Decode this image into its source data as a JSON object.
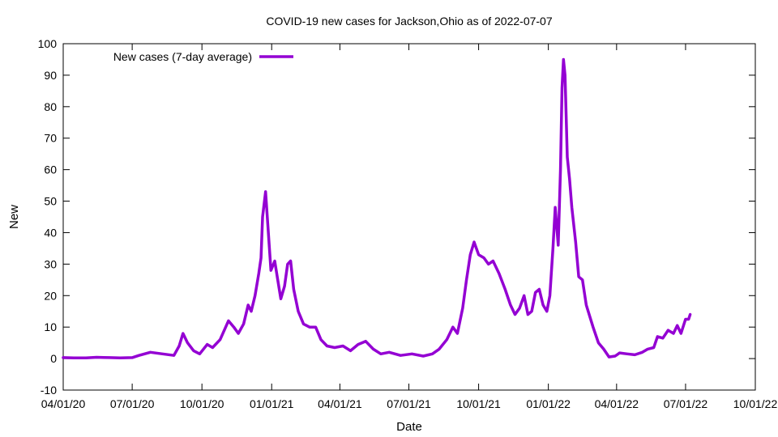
{
  "chart_data": {
    "type": "line",
    "title": "COVID-19 new cases for Jackson,Ohio as of 2022-07-07",
    "xlabel": "Date",
    "ylabel": "New",
    "ylim": [
      -10,
      100
    ],
    "xlim": [
      "2020-04-01",
      "2022-10-01"
    ],
    "x_ticks": [
      "04/01/20",
      "07/01/20",
      "10/01/20",
      "01/01/21",
      "04/01/21",
      "07/01/21",
      "10/01/21",
      "01/01/22",
      "04/01/22",
      "07/01/22",
      "10/01/22"
    ],
    "y_ticks": [
      -10,
      0,
      10,
      20,
      30,
      40,
      50,
      60,
      70,
      80,
      90,
      100
    ],
    "grid": false,
    "legend_position": "top-left",
    "series": [
      {
        "name": "New cases (7-day average)",
        "color": "#9400d3",
        "points": [
          [
            "2020-04-01",
            0.3
          ],
          [
            "2020-04-15",
            0.2
          ],
          [
            "2020-05-01",
            0.2
          ],
          [
            "2020-05-15",
            0.4
          ],
          [
            "2020-06-01",
            0.3
          ],
          [
            "2020-06-15",
            0.2
          ],
          [
            "2020-07-01",
            0.3
          ],
          [
            "2020-07-10",
            1.0
          ],
          [
            "2020-07-25",
            2.0
          ],
          [
            "2020-08-10",
            1.5
          ],
          [
            "2020-08-25",
            1.0
          ],
          [
            "2020-09-01",
            4.0
          ],
          [
            "2020-09-06",
            8.0
          ],
          [
            "2020-09-12",
            5.0
          ],
          [
            "2020-09-20",
            2.5
          ],
          [
            "2020-09-28",
            1.5
          ],
          [
            "2020-10-08",
            4.5
          ],
          [
            "2020-10-15",
            3.5
          ],
          [
            "2020-10-25",
            6.0
          ],
          [
            "2020-11-05",
            12.0
          ],
          [
            "2020-11-12",
            10.0
          ],
          [
            "2020-11-18",
            8.0
          ],
          [
            "2020-11-25",
            11.0
          ],
          [
            "2020-12-01",
            17.0
          ],
          [
            "2020-12-05",
            15.0
          ],
          [
            "2020-12-10",
            20.0
          ],
          [
            "2020-12-15",
            27.0
          ],
          [
            "2020-12-18",
            32.0
          ],
          [
            "2020-12-20",
            45.0
          ],
          [
            "2020-12-24",
            53.0
          ],
          [
            "2020-12-27",
            42.0
          ],
          [
            "2020-12-31",
            28.0
          ],
          [
            "2021-01-05",
            31.0
          ],
          [
            "2021-01-09",
            25.0
          ],
          [
            "2021-01-13",
            19.0
          ],
          [
            "2021-01-18",
            23.0
          ],
          [
            "2021-01-22",
            30.0
          ],
          [
            "2021-01-26",
            31.0
          ],
          [
            "2021-01-30",
            22.0
          ],
          [
            "2021-02-05",
            15.0
          ],
          [
            "2021-02-12",
            11.0
          ],
          [
            "2021-02-20",
            10.0
          ],
          [
            "2021-02-28",
            10.0
          ],
          [
            "2021-03-07",
            6.0
          ],
          [
            "2021-03-15",
            4.0
          ],
          [
            "2021-03-25",
            3.5
          ],
          [
            "2021-04-05",
            4.0
          ],
          [
            "2021-04-15",
            2.5
          ],
          [
            "2021-04-25",
            4.5
          ],
          [
            "2021-05-05",
            5.5
          ],
          [
            "2021-05-15",
            3.0
          ],
          [
            "2021-05-25",
            1.5
          ],
          [
            "2021-06-05",
            2.0
          ],
          [
            "2021-06-20",
            1.0
          ],
          [
            "2021-07-05",
            1.5
          ],
          [
            "2021-07-20",
            0.8
          ],
          [
            "2021-08-01",
            1.5
          ],
          [
            "2021-08-10",
            3.0
          ],
          [
            "2021-08-20",
            6.0
          ],
          [
            "2021-08-28",
            10.0
          ],
          [
            "2021-09-03",
            8.0
          ],
          [
            "2021-09-10",
            16.0
          ],
          [
            "2021-09-15",
            25.0
          ],
          [
            "2021-09-20",
            33.0
          ],
          [
            "2021-09-25",
            37.0
          ],
          [
            "2021-10-01",
            33.0
          ],
          [
            "2021-10-08",
            32.0
          ],
          [
            "2021-10-14",
            30.0
          ],
          [
            "2021-10-20",
            31.0
          ],
          [
            "2021-10-28",
            27.0
          ],
          [
            "2021-11-05",
            22.0
          ],
          [
            "2021-11-12",
            17.0
          ],
          [
            "2021-11-18",
            14.0
          ],
          [
            "2021-11-24",
            16.0
          ],
          [
            "2021-11-30",
            20.0
          ],
          [
            "2021-12-05",
            14.0
          ],
          [
            "2021-12-10",
            15.0
          ],
          [
            "2021-12-15",
            21.0
          ],
          [
            "2021-12-20",
            22.0
          ],
          [
            "2021-12-25",
            17.0
          ],
          [
            "2021-12-30",
            15.0
          ],
          [
            "2022-01-03",
            20.0
          ],
          [
            "2022-01-07",
            35.0
          ],
          [
            "2022-01-10",
            48.0
          ],
          [
            "2022-01-14",
            36.0
          ],
          [
            "2022-01-17",
            60.0
          ],
          [
            "2022-01-19",
            86.0
          ],
          [
            "2022-01-21",
            95.0
          ],
          [
            "2022-01-23",
            90.0
          ],
          [
            "2022-01-26",
            64.0
          ],
          [
            "2022-01-29",
            57.0
          ],
          [
            "2022-02-01",
            48.0
          ],
          [
            "2022-02-06",
            37.0
          ],
          [
            "2022-02-10",
            26.0
          ],
          [
            "2022-02-15",
            25.0
          ],
          [
            "2022-02-20",
            17.0
          ],
          [
            "2022-03-01",
            10.0
          ],
          [
            "2022-03-08",
            5.0
          ],
          [
            "2022-03-15",
            3.0
          ],
          [
            "2022-03-22",
            0.5
          ],
          [
            "2022-03-30",
            0.8
          ],
          [
            "2022-04-05",
            1.8
          ],
          [
            "2022-04-15",
            1.5
          ],
          [
            "2022-04-25",
            1.2
          ],
          [
            "2022-05-05",
            2.0
          ],
          [
            "2022-05-12",
            3.0
          ],
          [
            "2022-05-20",
            3.5
          ],
          [
            "2022-05-25",
            7.0
          ],
          [
            "2022-06-01",
            6.5
          ],
          [
            "2022-06-08",
            9.0
          ],
          [
            "2022-06-15",
            8.0
          ],
          [
            "2022-06-20",
            10.5
          ],
          [
            "2022-06-25",
            8.0
          ],
          [
            "2022-07-01",
            12.5
          ],
          [
            "2022-07-05",
            12.5
          ],
          [
            "2022-07-07",
            14.0
          ]
        ]
      }
    ]
  }
}
